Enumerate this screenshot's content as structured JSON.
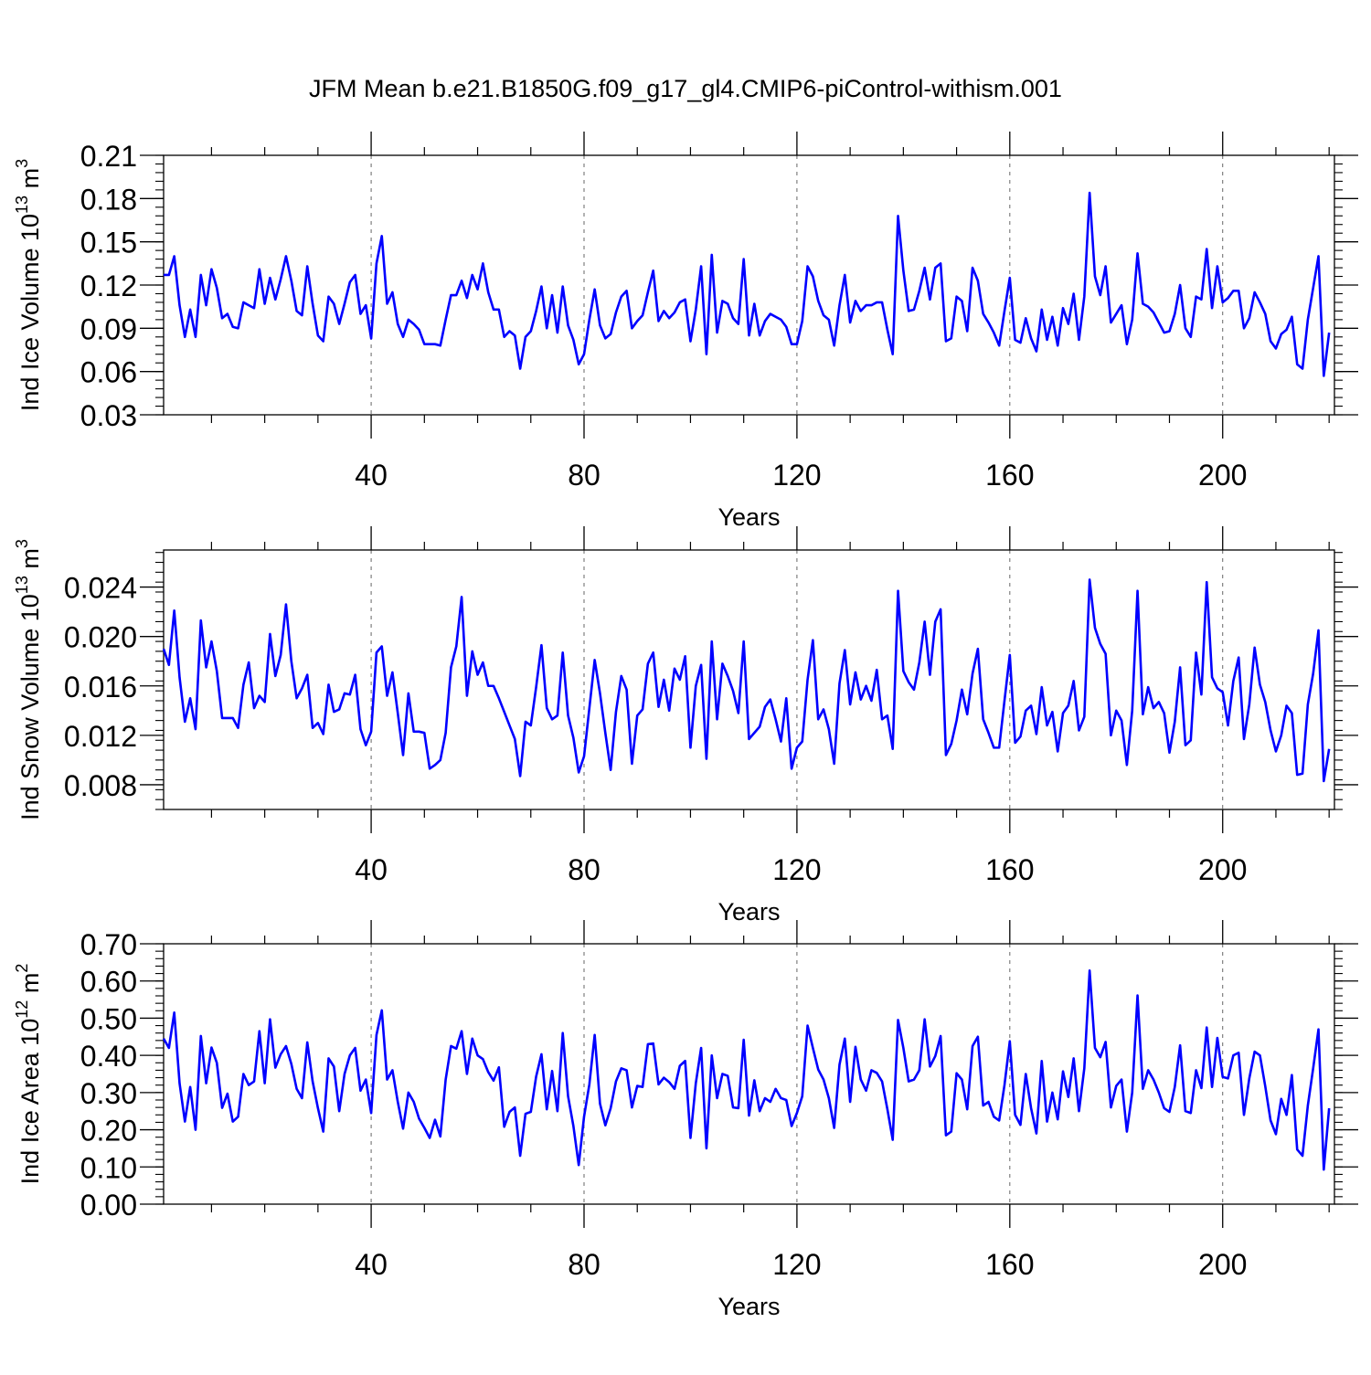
{
  "title": "JFM Mean b.e21.B1850G.f09_g17_gl4.CMIP6-piControl-withism.001",
  "line_color": "#0000ff",
  "chart_data": [
    {
      "type": "line",
      "name": "ice-volume",
      "ylabel": "Ind Ice Volume 10",
      "ylabel_sup": "13",
      "ylabel_unit": " m",
      "ylabel_unit_sup": "3",
      "xlabel": "Years",
      "xlim": [
        1,
        221
      ],
      "ylim": [
        0.03,
        0.21
      ],
      "xticks": [
        40,
        80,
        120,
        160,
        200
      ],
      "yticks": [
        0.03,
        0.06,
        0.09,
        0.12,
        0.15,
        0.18,
        0.21
      ],
      "ytick_labels": [
        "0.03",
        "0.06",
        "0.09",
        "0.12",
        "0.15",
        "0.18",
        "0.21"
      ],
      "x_start": 1,
      "values": [
        0.127,
        0.127,
        0.14,
        0.106,
        0.084,
        0.103,
        0.084,
        0.127,
        0.106,
        0.131,
        0.118,
        0.097,
        0.1,
        0.091,
        0.09,
        0.108,
        0.106,
        0.104,
        0.131,
        0.107,
        0.125,
        0.11,
        0.124,
        0.14,
        0.123,
        0.102,
        0.099,
        0.133,
        0.107,
        0.085,
        0.081,
        0.112,
        0.107,
        0.093,
        0.107,
        0.122,
        0.127,
        0.1,
        0.106,
        0.083,
        0.135,
        0.154,
        0.107,
        0.115,
        0.093,
        0.084,
        0.096,
        0.093,
        0.089,
        0.079,
        0.079,
        0.079,
        0.078,
        0.096,
        0.113,
        0.113,
        0.123,
        0.111,
        0.127,
        0.117,
        0.135,
        0.115,
        0.103,
        0.103,
        0.084,
        0.088,
        0.085,
        0.062,
        0.084,
        0.088,
        0.102,
        0.119,
        0.09,
        0.113,
        0.087,
        0.119,
        0.092,
        0.082,
        0.065,
        0.072,
        0.096,
        0.117,
        0.092,
        0.083,
        0.086,
        0.101,
        0.112,
        0.116,
        0.09,
        0.095,
        0.099,
        0.115,
        0.13,
        0.095,
        0.102,
        0.097,
        0.101,
        0.108,
        0.11,
        0.081,
        0.103,
        0.133,
        0.072,
        0.141,
        0.087,
        0.109,
        0.107,
        0.097,
        0.093,
        0.138,
        0.085,
        0.107,
        0.085,
        0.095,
        0.1,
        0.098,
        0.096,
        0.091,
        0.079,
        0.079,
        0.095,
        0.133,
        0.126,
        0.109,
        0.099,
        0.096,
        0.078,
        0.106,
        0.127,
        0.094,
        0.109,
        0.102,
        0.106,
        0.106,
        0.108,
        0.108,
        0.089,
        0.072,
        0.168,
        0.13,
        0.102,
        0.103,
        0.116,
        0.132,
        0.11,
        0.132,
        0.135,
        0.081,
        0.083,
        0.112,
        0.109,
        0.088,
        0.132,
        0.123,
        0.1,
        0.094,
        0.087,
        0.078,
        0.102,
        0.125,
        0.082,
        0.08,
        0.097,
        0.083,
        0.074,
        0.103,
        0.082,
        0.098,
        0.078,
        0.104,
        0.093,
        0.114,
        0.082,
        0.112,
        0.184,
        0.126,
        0.113,
        0.133,
        0.094,
        0.1,
        0.106,
        0.079,
        0.096,
        0.142,
        0.107,
        0.105,
        0.101,
        0.094,
        0.087,
        0.088,
        0.1,
        0.12,
        0.09,
        0.084,
        0.112,
        0.11,
        0.145,
        0.104,
        0.133,
        0.108,
        0.111,
        0.116,
        0.116,
        0.09,
        0.097,
        0.115,
        0.108,
        0.1,
        0.081,
        0.076,
        0.086,
        0.089,
        0.098,
        0.065,
        0.062,
        0.096,
        0.118,
        0.14,
        0.057,
        0.087
      ]
    },
    {
      "type": "line",
      "name": "snow-volume",
      "ylabel": "Ind Snow Volume 10",
      "ylabel_sup": "13",
      "ylabel_unit": " m",
      "ylabel_unit_sup": "3",
      "xlabel": "Years",
      "xlim": [
        1,
        221
      ],
      "ylim": [
        0.006,
        0.027
      ],
      "xticks": [
        40,
        80,
        120,
        160,
        200
      ],
      "yticks": [
        0.008,
        0.012,
        0.016,
        0.02,
        0.024
      ],
      "ytick_labels": [
        "0.008",
        "0.012",
        "0.016",
        "0.020",
        "0.024"
      ],
      "x_start": 1,
      "values": [
        0.019,
        0.0177,
        0.0221,
        0.0167,
        0.0131,
        0.015,
        0.0125,
        0.0213,
        0.0175,
        0.0196,
        0.0172,
        0.0134,
        0.0134,
        0.0134,
        0.0126,
        0.0161,
        0.0179,
        0.0142,
        0.0152,
        0.0147,
        0.0202,
        0.0168,
        0.0185,
        0.0226,
        0.018,
        0.015,
        0.0158,
        0.0169,
        0.0126,
        0.013,
        0.0121,
        0.0161,
        0.0139,
        0.0141,
        0.0154,
        0.0153,
        0.0169,
        0.0125,
        0.0112,
        0.0123,
        0.0187,
        0.0192,
        0.0152,
        0.0171,
        0.0138,
        0.0104,
        0.0154,
        0.0123,
        0.0123,
        0.0122,
        0.0093,
        0.0096,
        0.01,
        0.0122,
        0.0175,
        0.0192,
        0.0232,
        0.0152,
        0.0188,
        0.0169,
        0.0179,
        0.016,
        0.016,
        0.015,
        0.0139,
        0.0128,
        0.0117,
        0.0087,
        0.0131,
        0.0128,
        0.0159,
        0.0193,
        0.0142,
        0.0133,
        0.0136,
        0.0187,
        0.0136,
        0.0118,
        0.009,
        0.0103,
        0.0142,
        0.0181,
        0.0154,
        0.0122,
        0.0092,
        0.0139,
        0.0168,
        0.0157,
        0.0097,
        0.0136,
        0.0141,
        0.0178,
        0.0187,
        0.0143,
        0.0165,
        0.014,
        0.0174,
        0.0165,
        0.0184,
        0.011,
        0.016,
        0.0177,
        0.0101,
        0.0196,
        0.0133,
        0.0178,
        0.0168,
        0.0156,
        0.0138,
        0.0196,
        0.0117,
        0.0122,
        0.0127,
        0.0143,
        0.0149,
        0.0133,
        0.0115,
        0.015,
        0.0093,
        0.011,
        0.0115,
        0.0165,
        0.0197,
        0.0133,
        0.0141,
        0.0125,
        0.0097,
        0.0162,
        0.0189,
        0.0145,
        0.0171,
        0.0149,
        0.016,
        0.0148,
        0.0173,
        0.0133,
        0.0136,
        0.0109,
        0.0237,
        0.0172,
        0.0163,
        0.0157,
        0.0179,
        0.0212,
        0.0169,
        0.0212,
        0.0222,
        0.0104,
        0.0113,
        0.0132,
        0.0157,
        0.0137,
        0.017,
        0.019,
        0.0133,
        0.0122,
        0.011,
        0.011,
        0.0148,
        0.0185,
        0.0114,
        0.0119,
        0.014,
        0.0144,
        0.0121,
        0.0159,
        0.0128,
        0.0139,
        0.0107,
        0.0138,
        0.0144,
        0.0164,
        0.0124,
        0.0135,
        0.0246,
        0.0207,
        0.0194,
        0.0186,
        0.012,
        0.014,
        0.0132,
        0.0096,
        0.014,
        0.0237,
        0.0137,
        0.0159,
        0.0142,
        0.0147,
        0.0138,
        0.0106,
        0.0131,
        0.0175,
        0.0112,
        0.0116,
        0.0187,
        0.0153,
        0.0244,
        0.0167,
        0.0158,
        0.0155,
        0.0128,
        0.0164,
        0.0183,
        0.0117,
        0.0145,
        0.0191,
        0.0161,
        0.0147,
        0.0124,
        0.0107,
        0.012,
        0.0144,
        0.0138,
        0.0088,
        0.0089,
        0.0145,
        0.017,
        0.0205,
        0.0083,
        0.0109
      ]
    },
    {
      "type": "line",
      "name": "ice-area",
      "ylabel": "Ind Ice Area 10",
      "ylabel_sup": "12",
      "ylabel_unit": " m",
      "ylabel_unit_sup": "2",
      "xlabel": "Years",
      "xlim": [
        1,
        221
      ],
      "ylim": [
        0.0,
        0.7
      ],
      "xticks": [
        40,
        80,
        120,
        160,
        200
      ],
      "yticks": [
        0.0,
        0.1,
        0.2,
        0.3,
        0.4,
        0.5,
        0.6,
        0.7
      ],
      "ytick_labels": [
        "0.00",
        "0.10",
        "0.20",
        "0.30",
        "0.40",
        "0.50",
        "0.60",
        "0.70"
      ],
      "x_start": 1,
      "values": [
        0.445,
        0.42,
        0.515,
        0.325,
        0.222,
        0.315,
        0.2,
        0.452,
        0.325,
        0.421,
        0.38,
        0.259,
        0.297,
        0.222,
        0.235,
        0.35,
        0.32,
        0.33,
        0.465,
        0.325,
        0.497,
        0.367,
        0.403,
        0.425,
        0.377,
        0.31,
        0.285,
        0.435,
        0.33,
        0.258,
        0.195,
        0.392,
        0.37,
        0.25,
        0.35,
        0.4,
        0.42,
        0.305,
        0.335,
        0.245,
        0.455,
        0.521,
        0.335,
        0.36,
        0.275,
        0.203,
        0.3,
        0.275,
        0.23,
        0.205,
        0.178,
        0.227,
        0.182,
        0.335,
        0.425,
        0.418,
        0.465,
        0.35,
        0.445,
        0.4,
        0.39,
        0.355,
        0.332,
        0.368,
        0.208,
        0.248,
        0.26,
        0.13,
        0.243,
        0.248,
        0.343,
        0.403,
        0.255,
        0.358,
        0.25,
        0.46,
        0.29,
        0.21,
        0.105,
        0.235,
        0.322,
        0.455,
        0.27,
        0.212,
        0.258,
        0.33,
        0.365,
        0.36,
        0.26,
        0.318,
        0.315,
        0.43,
        0.432,
        0.322,
        0.34,
        0.328,
        0.31,
        0.372,
        0.385,
        0.178,
        0.325,
        0.42,
        0.15,
        0.4,
        0.285,
        0.35,
        0.345,
        0.26,
        0.258,
        0.442,
        0.238,
        0.333,
        0.25,
        0.285,
        0.275,
        0.31,
        0.285,
        0.28,
        0.21,
        0.245,
        0.29,
        0.48,
        0.42,
        0.362,
        0.335,
        0.285,
        0.205,
        0.375,
        0.445,
        0.275,
        0.423,
        0.335,
        0.305,
        0.36,
        0.353,
        0.33,
        0.255,
        0.173,
        0.495,
        0.42,
        0.33,
        0.335,
        0.36,
        0.497,
        0.37,
        0.398,
        0.452,
        0.185,
        0.195,
        0.352,
        0.335,
        0.255,
        0.425,
        0.45,
        0.265,
        0.275,
        0.235,
        0.225,
        0.32,
        0.438,
        0.24,
        0.213,
        0.35,
        0.258,
        0.19,
        0.385,
        0.222,
        0.3,
        0.228,
        0.357,
        0.288,
        0.392,
        0.25,
        0.365,
        0.628,
        0.42,
        0.395,
        0.436,
        0.26,
        0.318,
        0.335,
        0.195,
        0.3,
        0.561,
        0.31,
        0.36,
        0.335,
        0.3,
        0.258,
        0.248,
        0.315,
        0.427,
        0.25,
        0.245,
        0.36,
        0.312,
        0.475,
        0.315,
        0.447,
        0.342,
        0.338,
        0.4,
        0.407,
        0.24,
        0.338,
        0.41,
        0.4,
        0.317,
        0.225,
        0.188,
        0.283,
        0.24,
        0.347,
        0.147,
        0.13,
        0.265,
        0.365,
        0.47,
        0.093,
        0.258
      ]
    }
  ]
}
